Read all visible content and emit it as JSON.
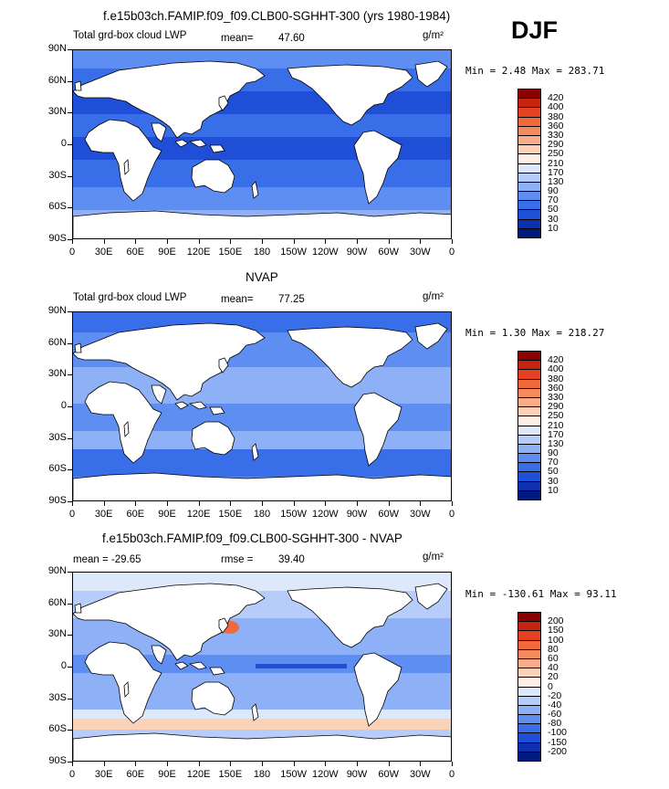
{
  "season": "DJF",
  "panels": [
    {
      "title": "f.e15b03ch.FAMIP.f09_f09.CLB00-SGHHT-300 (yrs 1980-1984)",
      "left_label": "Total grd-box cloud LWP",
      "stat_label": "mean=",
      "stat_value": "47.60",
      "units": "g/m²",
      "minmax": "Min =    2.48 Max = 283.71",
      "colorbar_labels": [
        "420",
        "400",
        "380",
        "360",
        "330",
        "290",
        "250",
        "210",
        "170",
        "130",
        "90",
        "70",
        "50",
        "30",
        "10"
      ],
      "colorbar_colors": [
        "#8b0000",
        "#c62410",
        "#e64022",
        "#f26a3c",
        "#f58a5e",
        "#f8ac8a",
        "#fbd2b8",
        "#fdeee6",
        "#dde8fb",
        "#b6cdfb",
        "#8db0f7",
        "#5f8ef3",
        "#386ee8",
        "#1e4fd6",
        "#0d2fb0",
        "#001a80"
      ],
      "x_labels": [
        "0",
        "30E",
        "60E",
        "90E",
        "120E",
        "150E",
        "180",
        "150W",
        "120W",
        "90W",
        "60W",
        "30W",
        "0"
      ],
      "y_labels": [
        "90N",
        "60N",
        "30N",
        "0",
        "30S",
        "60S",
        "90S"
      ],
      "ocean_base": "#386ee8"
    },
    {
      "title": "NVAP",
      "left_label": "Total grd-box cloud LWP",
      "stat_label": "mean=",
      "stat_value": "77.25",
      "units": "g/m²",
      "minmax": "Min =    1.30 Max = 218.27",
      "colorbar_labels": [
        "420",
        "400",
        "380",
        "360",
        "330",
        "290",
        "250",
        "210",
        "170",
        "130",
        "90",
        "70",
        "50",
        "30",
        "10"
      ],
      "colorbar_colors": [
        "#8b0000",
        "#c62410",
        "#e64022",
        "#f26a3c",
        "#f58a5e",
        "#f8ac8a",
        "#fbd2b8",
        "#fdeee6",
        "#dde8fb",
        "#b6cdfb",
        "#8db0f7",
        "#5f8ef3",
        "#386ee8",
        "#1e4fd6",
        "#0d2fb0",
        "#001a80"
      ],
      "x_labels": [
        "0",
        "30E",
        "60E",
        "90E",
        "120E",
        "150E",
        "180",
        "150W",
        "120W",
        "90W",
        "60W",
        "30W",
        "0"
      ],
      "y_labels": [
        "90N",
        "60N",
        "30N",
        "0",
        "30S",
        "60S",
        "90S"
      ],
      "ocean_base": "#5f8ef3"
    },
    {
      "title": "f.e15b03ch.FAMIP.f09_f09.CLB00-SGHHT-300 - NVAP",
      "left_label": "mean = -29.65",
      "stat_label": "rmse =",
      "stat_value": "39.40",
      "units": "g/m²",
      "minmax": "Min = -130.61 Max =  93.11",
      "colorbar_labels": [
        "200",
        "150",
        "100",
        "80",
        "60",
        "40",
        "20",
        "0",
        "-20",
        "-40",
        "-60",
        "-80",
        "-100",
        "-150",
        "-200"
      ],
      "colorbar_colors": [
        "#8b0000",
        "#c62410",
        "#e64022",
        "#f26a3c",
        "#f58a5e",
        "#f8ac8a",
        "#fbd2b8",
        "#fdeee6",
        "#dde8fb",
        "#b6cdfb",
        "#8db0f7",
        "#5f8ef3",
        "#386ee8",
        "#1e4fd6",
        "#0d2fb0",
        "#001a80"
      ],
      "x_labels": [
        "0",
        "30E",
        "60E",
        "90E",
        "120E",
        "150E",
        "180",
        "150W",
        "120W",
        "90W",
        "60W",
        "30W",
        "0"
      ],
      "y_labels": [
        "90N",
        "60N",
        "30N",
        "0",
        "30S",
        "60S",
        "90S"
      ],
      "ocean_base": "#8db0f7"
    }
  ]
}
